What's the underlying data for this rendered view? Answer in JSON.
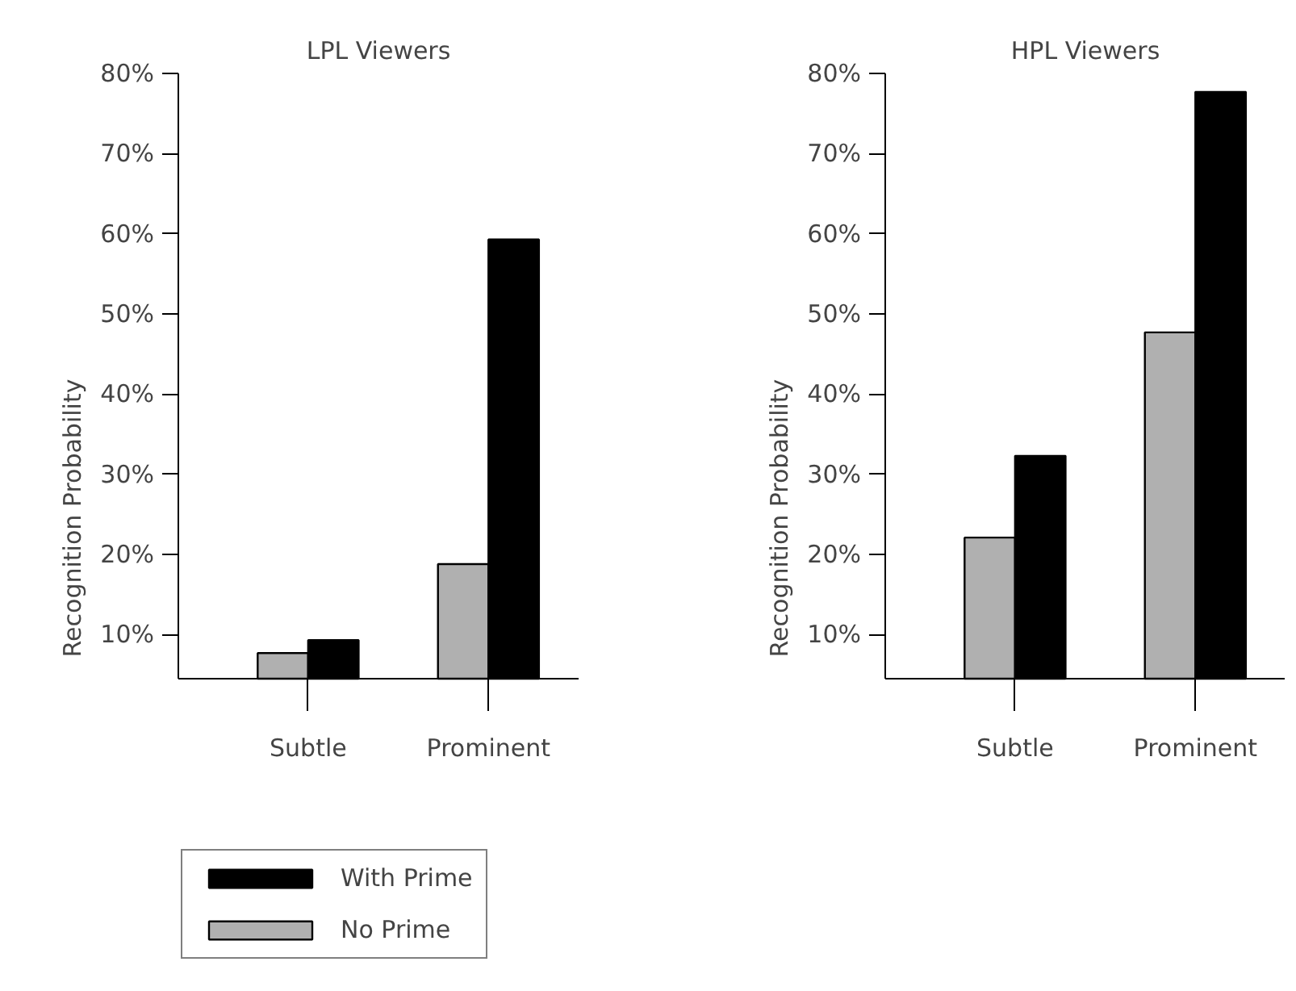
{
  "chart_data": [
    {
      "type": "bar",
      "title": "LPL Viewers",
      "ylabel": "Recognition Probability",
      "categories": [
        "Subtle",
        "Prominent"
      ],
      "series": [
        {
          "name": "No Prime",
          "color": "#b0b0b0",
          "values": [
            7.7,
            18.8
          ]
        },
        {
          "name": "With Prime",
          "color": "#000000",
          "values": [
            9.3,
            59.3
          ]
        }
      ],
      "ylim": [
        4.5,
        80
      ],
      "yticks": [
        {
          "value": 10,
          "label": "10%"
        },
        {
          "value": 20,
          "label": "20%"
        },
        {
          "value": 30,
          "label": "30%"
        },
        {
          "value": 40,
          "label": "40%"
        },
        {
          "value": 50,
          "label": "50%"
        },
        {
          "value": 60,
          "label": "60%"
        },
        {
          "value": 70,
          "label": "70%"
        },
        {
          "value": 80,
          "label": "80%"
        }
      ],
      "legend": "bottom left"
    },
    {
      "type": "bar",
      "title": "HPL Viewers",
      "ylabel": "Recognition Probability",
      "categories": [
        "Subtle",
        "Prominent"
      ],
      "series": [
        {
          "color": "#b0b0b0",
          "values": [
            22.1,
            47.7
          ]
        },
        {
          "color": "#000000",
          "values": [
            32.3,
            77.7
          ]
        }
      ],
      "ylim": [
        4.5,
        80
      ],
      "yticks": [
        {
          "value": 10,
          "label": "10%"
        },
        {
          "value": 20,
          "label": "20%"
        },
        {
          "value": 30,
          "label": "30%"
        },
        {
          "value": 40,
          "label": "40%"
        },
        {
          "value": 50,
          "label": "50%"
        },
        {
          "value": 60,
          "label": "60%"
        },
        {
          "value": 70,
          "label": "70%"
        },
        {
          "value": 80,
          "label": "80%"
        }
      ]
    }
  ]
}
